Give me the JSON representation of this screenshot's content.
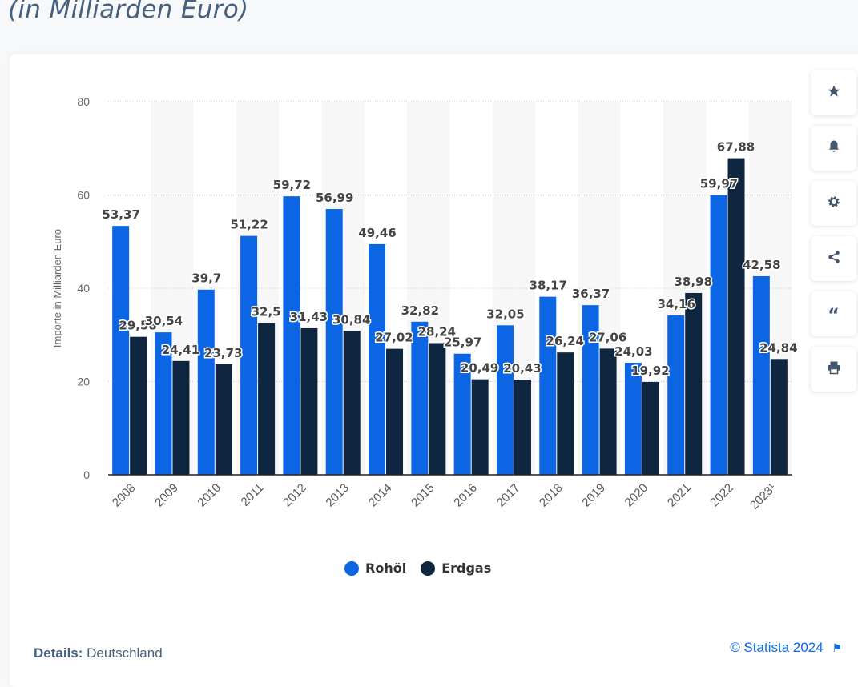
{
  "header": {
    "subtitle": "(in Milliarden Euro)"
  },
  "chart_data": {
    "type": "bar",
    "categories": [
      "2008",
      "2009",
      "2010",
      "2011",
      "2012",
      "2013",
      "2014",
      "2015",
      "2016",
      "2017",
      "2018",
      "2019",
      "2020",
      "2021",
      "2022",
      "2023¹"
    ],
    "series": [
      {
        "name": "Rohöl",
        "color": "#0c66e4",
        "values": [
          53.37,
          30.54,
          39.7,
          51.22,
          59.72,
          56.99,
          49.46,
          32.82,
          25.97,
          32.05,
          38.17,
          36.37,
          24.03,
          34.16,
          59.97,
          42.58
        ],
        "labels": [
          "53,37",
          "30,54",
          "39,7",
          "51,22",
          "59,72",
          "56,99",
          "49,46",
          "32,82",
          "25,97",
          "32,05",
          "38,17",
          "36,37",
          "24,03",
          "34,16",
          "59,97",
          "42,58"
        ]
      },
      {
        "name": "Erdgas",
        "color": "#0f2640",
        "values": [
          29.58,
          24.41,
          23.73,
          32.5,
          31.43,
          30.84,
          27.02,
          28.24,
          20.49,
          20.43,
          26.24,
          27.06,
          19.92,
          38.98,
          67.88,
          24.84
        ],
        "labels": [
          "29,58",
          "24,41",
          "23,73",
          "32,5",
          "31,43",
          "30,84",
          "27,02",
          "28,24",
          "20,49",
          "20,43",
          "26,24",
          "27,06",
          "19,92",
          "38,98",
          "67,88",
          "24,84"
        ]
      }
    ],
    "ylabel": "Importe in Milliarden Euro",
    "ylim": [
      0,
      80
    ],
    "yticks": [
      "0",
      "20",
      "40",
      "60",
      "80"
    ],
    "grid": true,
    "legend_placement": "bottom"
  },
  "sidebar": {
    "icons": [
      "star-icon",
      "bell-icon",
      "gear-icon",
      "share-icon",
      "quote-icon",
      "print-icon"
    ]
  },
  "footer": {
    "details_label": "Details:",
    "details_value": "Deutschland",
    "copyright": "© Statista 2024"
  }
}
